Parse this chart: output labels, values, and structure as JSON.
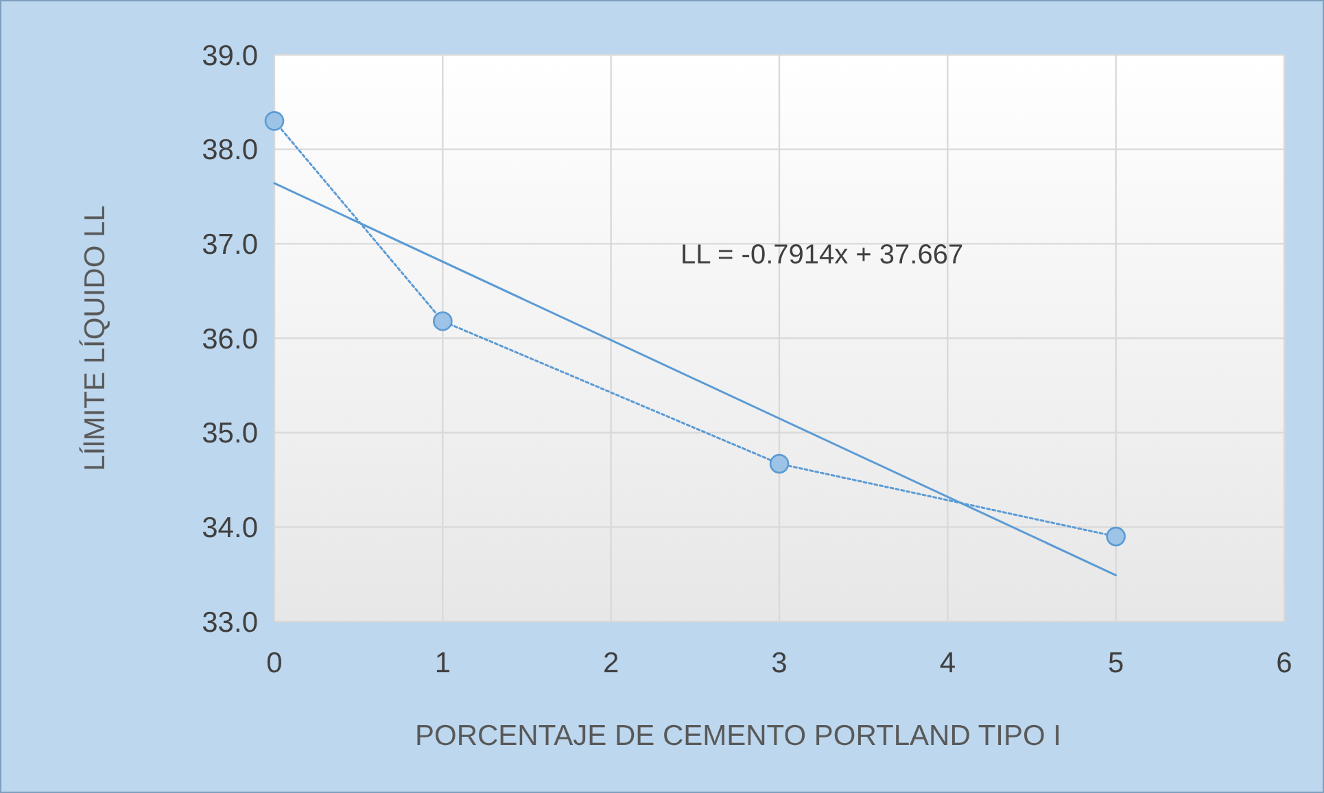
{
  "chart_data": {
    "type": "line",
    "xlabel": "PORCENTAJE DE CEMENTO PORTLAND TIPO I",
    "ylabel": "LÍlMITE LÍQUIDO LL",
    "xlim": [
      0,
      6
    ],
    "ylim": [
      33,
      39
    ],
    "xticks": [
      0,
      1,
      2,
      3,
      4,
      5,
      6
    ],
    "yticks": [
      {
        "value": 33,
        "label": "33.0"
      },
      {
        "value": 34,
        "label": "34.0"
      },
      {
        "value": 35,
        "label": "35.0"
      },
      {
        "value": 36,
        "label": "36.0"
      },
      {
        "value": 37,
        "label": "37.0"
      },
      {
        "value": 38,
        "label": "38.0"
      },
      {
        "value": 39,
        "label": "39.0"
      }
    ],
    "grid": true,
    "series": [
      {
        "color": "#5b9bd5",
        "x": [
          0,
          1,
          3,
          5
        ],
        "values": [
          38.3,
          36.18,
          34.67,
          33.9
        ],
        "marker": "circle",
        "line_style": "dotted"
      },
      {
        "type": "line",
        "color": "#5b9bd5",
        "x": [
          0,
          5
        ],
        "values": [
          37.64,
          33.49
        ],
        "marker": "none",
        "line_style": "solid"
      }
    ],
    "annotations": [
      "LL = -0.7914x + 37.667"
    ]
  }
}
